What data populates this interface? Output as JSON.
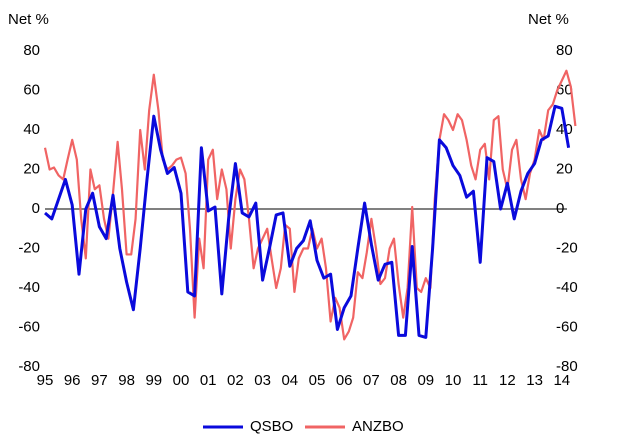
{
  "chart_data": {
    "type": "line",
    "ylabel": "Net %",
    "y2label": "Net %",
    "xlim": [
      1995,
      2014.5
    ],
    "ylim": [
      -80,
      80
    ],
    "y2lim": [
      -80,
      80
    ],
    "yticks": [
      -80,
      -60,
      -40,
      -20,
      0,
      20,
      40,
      60,
      80
    ],
    "y2ticks": [
      -80,
      -60,
      -40,
      -20,
      0,
      20,
      40,
      60,
      80
    ],
    "xticks": [
      {
        "value": 1995,
        "label": "95"
      },
      {
        "value": 1996,
        "label": "96"
      },
      {
        "value": 1997,
        "label": "97"
      },
      {
        "value": 1998,
        "label": "98"
      },
      {
        "value": 1999,
        "label": "99"
      },
      {
        "value": 2000,
        "label": "00"
      },
      {
        "value": 2001,
        "label": "01"
      },
      {
        "value": 2002,
        "label": "02"
      },
      {
        "value": 2003,
        "label": "03"
      },
      {
        "value": 2004,
        "label": "04"
      },
      {
        "value": 2005,
        "label": "05"
      },
      {
        "value": 2006,
        "label": "06"
      },
      {
        "value": 2007,
        "label": "07"
      },
      {
        "value": 2008,
        "label": "08"
      },
      {
        "value": 2009,
        "label": "09"
      },
      {
        "value": 2010,
        "label": "10"
      },
      {
        "value": 2011,
        "label": "11"
      },
      {
        "value": 2012,
        "label": "12"
      },
      {
        "value": 2013,
        "label": "13"
      },
      {
        "value": 2014,
        "label": "14"
      }
    ],
    "series": [
      {
        "name": "QSBO",
        "color": "#0a0adc",
        "x": [
          1995,
          1995.25,
          1995.5,
          1995.75,
          1996,
          1996.25,
          1996.5,
          1996.75,
          1997,
          1997.25,
          1997.5,
          1997.75,
          1998,
          1998.25,
          1998.5,
          1998.75,
          1999,
          1999.25,
          1999.5,
          1999.75,
          2000,
          2000.25,
          2000.5,
          2000.75,
          2001,
          2001.25,
          2001.5,
          2001.75,
          2002,
          2002.25,
          2002.5,
          2002.75,
          2003,
          2003.25,
          2003.5,
          2003.75,
          2004,
          2004.25,
          2004.5,
          2004.75,
          2005,
          2005.25,
          2005.5,
          2005.75,
          2006,
          2006.25,
          2006.5,
          2006.75,
          2007,
          2007.25,
          2007.5,
          2007.75,
          2008,
          2008.25,
          2008.5,
          2008.75,
          2009,
          2009.25,
          2009.5,
          2009.75,
          2010,
          2010.25,
          2010.5,
          2010.75,
          2011,
          2011.25,
          2011.5,
          2011.75,
          2012,
          2012.25,
          2012.5,
          2012.75,
          2013,
          2013.25,
          2013.5,
          2013.75,
          2014,
          2014.25
        ],
        "values": [
          -2,
          -5,
          5,
          15,
          2,
          -33,
          0,
          8,
          -9,
          -15,
          7,
          -20,
          -37,
          -51,
          -20,
          15,
          47,
          30,
          18,
          21,
          8,
          -42,
          -44,
          31,
          -1,
          1,
          -43,
          -5,
          23,
          -2,
          -4,
          3,
          -36,
          -20,
          -3,
          -2,
          -29,
          -20,
          -16,
          -6,
          -26,
          -35,
          -33,
          -61,
          -50,
          -44,
          -20,
          3,
          -18,
          -36,
          -28,
          -27,
          -64,
          -64,
          -19,
          -64,
          -65,
          -20,
          35,
          31,
          22,
          17,
          6,
          9,
          -27,
          26,
          24,
          0,
          13,
          -5,
          9,
          18,
          23,
          35,
          37,
          52,
          51,
          31
        ]
      },
      {
        "name": "ANZBO",
        "color": "#f06464",
        "x": [
          1995,
          1995.17,
          1995.33,
          1995.5,
          1995.67,
          1995.83,
          1996,
          1996.17,
          1996.33,
          1996.5,
          1996.67,
          1996.83,
          1997,
          1997.17,
          1997.33,
          1997.5,
          1997.67,
          1997.83,
          1998,
          1998.17,
          1998.33,
          1998.5,
          1998.67,
          1998.83,
          1999,
          1999.17,
          1999.33,
          1999.5,
          1999.67,
          1999.83,
          2000,
          2000.17,
          2000.33,
          2000.5,
          2000.67,
          2000.83,
          2001,
          2001.17,
          2001.33,
          2001.5,
          2001.67,
          2001.83,
          2002,
          2002.17,
          2002.33,
          2002.5,
          2002.67,
          2002.83,
          2003,
          2003.17,
          2003.33,
          2003.5,
          2003.67,
          2003.83,
          2004,
          2004.17,
          2004.33,
          2004.5,
          2004.67,
          2004.83,
          2005,
          2005.17,
          2005.33,
          2005.5,
          2005.67,
          2005.83,
          2006,
          2006.17,
          2006.33,
          2006.5,
          2006.67,
          2006.83,
          2007,
          2007.17,
          2007.33,
          2007.5,
          2007.67,
          2007.83,
          2008,
          2008.17,
          2008.33,
          2008.5,
          2008.67,
          2008.83,
          2009,
          2009.17,
          2009.33,
          2009.5,
          2009.67,
          2009.83,
          2010,
          2010.17,
          2010.33,
          2010.5,
          2010.67,
          2010.83,
          2011,
          2011.17,
          2011.33,
          2011.5,
          2011.67,
          2011.83,
          2012,
          2012.17,
          2012.33,
          2012.5,
          2012.67,
          2012.83,
          2013,
          2013.17,
          2013.33,
          2013.5,
          2013.67,
          2013.83,
          2014,
          2014.17,
          2014.33,
          2014.5
        ],
        "values": [
          31,
          20,
          21,
          17,
          15,
          25,
          35,
          25,
          -5,
          -25,
          20,
          10,
          12,
          -5,
          -15,
          8,
          34,
          10,
          -23,
          -23,
          -5,
          40,
          20,
          50,
          68,
          50,
          25,
          20,
          22,
          25,
          26,
          18,
          -10,
          -55,
          -15,
          -30,
          25,
          30,
          5,
          20,
          10,
          -20,
          5,
          20,
          15,
          -5,
          -30,
          -20,
          -15,
          -10,
          -25,
          -40,
          -30,
          -8,
          -10,
          -42,
          -25,
          -20,
          -20,
          -10,
          -20,
          -15,
          -30,
          -57,
          -45,
          -50,
          -66,
          -62,
          -55,
          -32,
          -35,
          -22,
          -5,
          -20,
          -38,
          -35,
          -20,
          -15,
          -38,
          -55,
          -40,
          1,
          -40,
          -42,
          -35,
          -40,
          5,
          35,
          48,
          45,
          40,
          48,
          45,
          35,
          22,
          15,
          30,
          33,
          15,
          45,
          47,
          20,
          10,
          30,
          35,
          15,
          5,
          18,
          25,
          40,
          35,
          50,
          53,
          60,
          65,
          70,
          62,
          42
        ]
      }
    ]
  }
}
